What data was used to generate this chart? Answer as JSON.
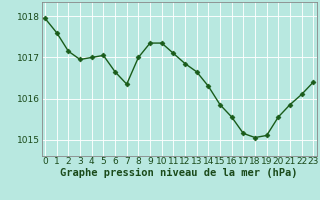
{
  "x": [
    0,
    1,
    2,
    3,
    4,
    5,
    6,
    7,
    8,
    9,
    10,
    11,
    12,
    13,
    14,
    15,
    16,
    17,
    18,
    19,
    20,
    21,
    22,
    23
  ],
  "y": [
    1017.95,
    1017.6,
    1017.15,
    1016.95,
    1017.0,
    1017.05,
    1016.65,
    1016.35,
    1017.0,
    1017.35,
    1017.35,
    1017.1,
    1016.85,
    1016.65,
    1016.3,
    1015.85,
    1015.55,
    1015.15,
    1015.05,
    1015.1,
    1015.55,
    1015.85,
    1016.1,
    1016.4
  ],
  "line_color": "#1a5c1a",
  "marker": "D",
  "marker_size": 2.5,
  "background_color": "#b8e8e0",
  "grid_color": "#d0eeea",
  "ylabel_ticks": [
    1015,
    1016,
    1017,
    1018
  ],
  "ylim": [
    1014.6,
    1018.35
  ],
  "xlim": [
    -0.3,
    23.3
  ],
  "xlabel": "Graphe pression niveau de la mer (hPa)",
  "xlabel_fontsize": 7.5,
  "tick_fontsize": 6.5,
  "line_width": 1.0
}
